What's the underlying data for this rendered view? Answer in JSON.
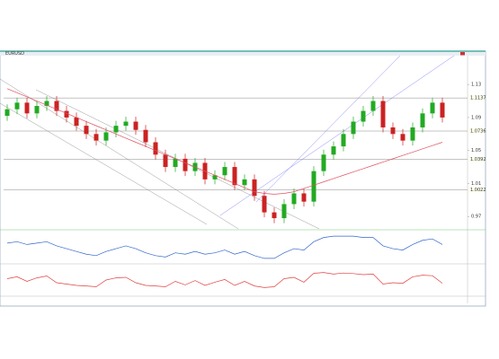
{
  "chart_data": {
    "type": "candlestick",
    "title": "EURUSD",
    "ylim": [
      0.955,
      1.165
    ],
    "yticks": [
      0.97,
      1.01,
      1.05,
      1.09,
      1.13
    ],
    "up_color": "#22aa22",
    "down_color": "#cc2222",
    "open": [
      1.092,
      1.1,
      1.108,
      1.095,
      1.104,
      1.11,
      1.098,
      1.09,
      1.08,
      1.07,
      1.062,
      1.072,
      1.08,
      1.085,
      1.075,
      1.06,
      1.045,
      1.03,
      1.04,
      1.025,
      1.035,
      1.015,
      1.02,
      1.03,
      1.008,
      1.015,
      0.995,
      0.975,
      0.968,
      0.985,
      0.998,
      0.988,
      1.025,
      1.045,
      1.055,
      1.07,
      1.085,
      1.098,
      1.11,
      1.078,
      1.07,
      1.062,
      1.078,
      1.095,
      1.108
    ],
    "high": [
      1.106,
      1.114,
      1.114,
      1.11,
      1.116,
      1.116,
      1.104,
      1.096,
      1.086,
      1.076,
      1.078,
      1.086,
      1.091,
      1.091,
      1.081,
      1.066,
      1.051,
      1.046,
      1.046,
      1.041,
      1.041,
      1.026,
      1.036,
      1.036,
      1.021,
      1.021,
      1.001,
      0.981,
      0.991,
      1.004,
      1.004,
      1.031,
      1.051,
      1.061,
      1.076,
      1.091,
      1.104,
      1.116,
      1.116,
      1.084,
      1.076,
      1.084,
      1.101,
      1.114,
      1.114
    ],
    "low": [
      1.086,
      1.094,
      1.089,
      1.089,
      1.098,
      1.092,
      1.084,
      1.074,
      1.064,
      1.056,
      1.056,
      1.066,
      1.074,
      1.069,
      1.054,
      1.039,
      1.024,
      1.024,
      1.019,
      1.019,
      1.009,
      1.009,
      1.014,
      1.002,
      1.002,
      0.989,
      0.969,
      0.962,
      0.962,
      0.979,
      0.982,
      0.982,
      1.019,
      1.039,
      1.049,
      1.064,
      1.079,
      1.092,
      1.072,
      1.064,
      1.056,
      1.056,
      1.072,
      1.089,
      1.084
    ],
    "close": [
      1.1,
      1.108,
      1.095,
      1.104,
      1.11,
      1.098,
      1.09,
      1.08,
      1.07,
      1.062,
      1.072,
      1.08,
      1.085,
      1.075,
      1.06,
      1.045,
      1.03,
      1.04,
      1.025,
      1.035,
      1.015,
      1.02,
      1.03,
      1.008,
      1.015,
      0.995,
      0.975,
      0.968,
      0.985,
      0.998,
      0.988,
      1.025,
      1.045,
      1.055,
      1.07,
      1.085,
      1.098,
      1.11,
      1.078,
      1.07,
      1.062,
      1.078,
      1.095,
      1.108,
      1.09
    ],
    "overlay": {
      "color": "#e05060",
      "values": [
        1.125,
        1.12,
        1.115,
        1.11,
        1.105,
        1.1,
        1.095,
        1.09,
        1.085,
        1.08,
        1.075,
        1.07,
        1.065,
        1.06,
        1.055,
        1.05,
        1.045,
        1.04,
        1.035,
        1.03,
        1.025,
        1.02,
        1.015,
        1.01,
        1.005,
        1.0,
        0.998,
        0.997,
        0.998,
        1.0,
        1.004,
        1.008,
        1.012,
        1.016,
        1.02,
        1.024,
        1.028,
        1.032,
        1.036,
        1.04,
        1.044,
        1.048,
        1.052,
        1.056,
        1.06
      ]
    },
    "levels": [
      1.1137,
      1.0736,
      1.0392,
      1.0022
    ],
    "level_color": "#888888",
    "indicator1": {
      "color": "#3366cc",
      "ylim": [
        -1,
        1
      ],
      "values": [
        0.3,
        0.4,
        0.2,
        0.3,
        0.4,
        0.1,
        -0.1,
        -0.3,
        -0.5,
        -0.6,
        -0.3,
        -0.1,
        0.1,
        -0.1,
        -0.4,
        -0.6,
        -0.7,
        -0.4,
        -0.5,
        -0.3,
        -0.5,
        -0.4,
        -0.2,
        -0.5,
        -0.3,
        -0.6,
        -0.8,
        -0.8,
        -0.4,
        -0.1,
        -0.2,
        0.4,
        0.7,
        0.8,
        0.8,
        0.8,
        0.7,
        0.7,
        0.1,
        -0.1,
        -0.2,
        0.2,
        0.5,
        0.6,
        0.2
      ]
    },
    "indicator2": {
      "color": "#e04040",
      "ylim": [
        0,
        100
      ],
      "values": [
        55,
        62,
        45,
        58,
        65,
        40,
        35,
        30,
        28,
        25,
        50,
        58,
        60,
        40,
        30,
        28,
        25,
        45,
        32,
        48,
        30,
        42,
        52,
        30,
        45,
        28,
        22,
        25,
        55,
        60,
        42,
        75,
        78,
        72,
        76,
        74,
        70,
        72,
        35,
        40,
        38,
        62,
        68,
        66,
        38
      ]
    }
  }
}
